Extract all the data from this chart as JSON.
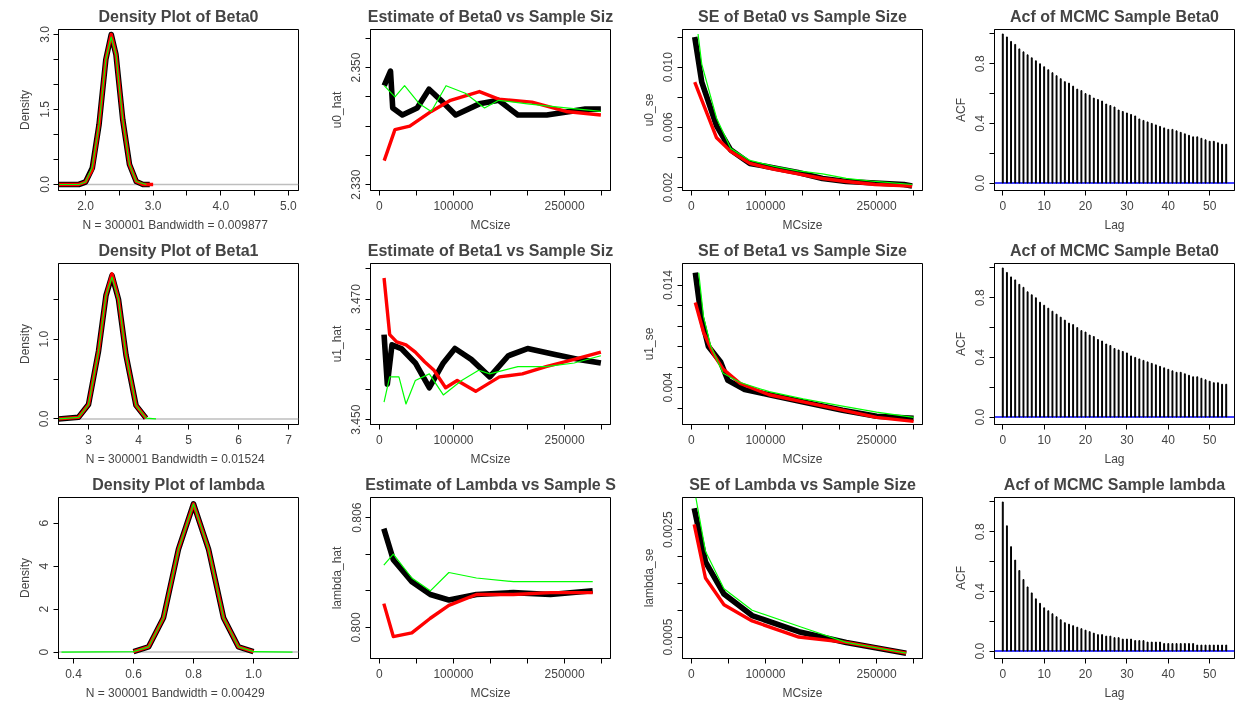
{
  "chart_data": [
    {
      "type": "line",
      "title": "Density Plot of Beta0",
      "xlabel": "N = 300001   Bandwidth = 0.009877",
      "ylabel": "Density",
      "xlim": [
        1.6,
        5.15
      ],
      "ylim": [
        -0.12,
        3.1
      ],
      "xticks": [
        {
          "value": 2.0,
          "label": "2.0"
        },
        {
          "value": 2.5,
          "label": null
        },
        {
          "value": 3.0,
          "label": "3.0"
        },
        {
          "value": 3.5,
          "label": null
        },
        {
          "value": 4.0,
          "label": "4.0"
        },
        {
          "value": 4.5,
          "label": null
        },
        {
          "value": 5.0,
          "label": "5.0"
        }
      ],
      "yticks": [
        {
          "value": 0,
          "label": "0.0"
        },
        {
          "value": 0.5,
          "label": null
        },
        {
          "value": 1.0,
          "label": null
        },
        {
          "value": 1.5,
          "label": "1.5"
        },
        {
          "value": 2.0,
          "label": null
        },
        {
          "value": 2.5,
          "label": null
        },
        {
          "value": 3.0,
          "label": "3.0"
        }
      ],
      "ref_lines": [
        {
          "axis": "y",
          "value": 0,
          "color": "#bebebe"
        }
      ],
      "series": [
        {
          "color": "#000000",
          "x": [
            1.6,
            1.9,
            2.0,
            2.1,
            2.2,
            2.3,
            2.38,
            2.45,
            2.55,
            2.65,
            2.75,
            2.85,
            2.95
          ],
          "values": [
            0,
            0,
            0.05,
            0.33,
            1.2,
            2.5,
            3.0,
            2.6,
            1.3,
            0.4,
            0.06,
            0,
            0
          ]
        },
        {
          "color": "#ff0000",
          "x": [
            1.6,
            1.9,
            2.0,
            2.1,
            2.2,
            2.3,
            2.38,
            2.45,
            2.55,
            2.65,
            2.75,
            2.85,
            3.0
          ],
          "values": [
            0,
            0,
            0.05,
            0.3,
            1.2,
            2.5,
            3.0,
            2.6,
            1.3,
            0.4,
            0.06,
            0,
            0
          ]
        },
        {
          "color": "#00ff00",
          "x": [
            1.6,
            1.9,
            2.0,
            2.1,
            2.2,
            2.3,
            2.38,
            2.45,
            2.55,
            2.65,
            2.75,
            2.9
          ],
          "values": [
            0,
            0,
            0.05,
            0.35,
            1.2,
            2.5,
            2.95,
            2.6,
            1.3,
            0.4,
            0.06,
            0
          ]
        }
      ]
    },
    {
      "type": "line",
      "title": "Estimate of Beta0 vs Sample Siz",
      "xlabel": "MCsize",
      "ylabel": "u0_hat",
      "xlim": [
        -12000,
        312000
      ],
      "ylim": [
        2.329,
        2.3565
      ],
      "xticks": [
        0,
        {
          "value": 50000,
          "label": null
        },
        100000,
        {
          "value": 150000,
          "label": null
        },
        {
          "value": 200000,
          "label": null
        },
        250000,
        {
          "value": 300000,
          "label": null
        }
      ],
      "yticks": [
        {
          "value": 2.33,
          "label": "2.330"
        },
        {
          "value": 2.335,
          "label": null
        },
        {
          "value": 2.34,
          "label": null
        },
        {
          "value": 2.345,
          "label": null
        },
        {
          "value": 2.35,
          "label": "2.350"
        },
        {
          "value": 2.355,
          "label": null
        }
      ],
      "series": [
        {
          "color": "#000000",
          "x": [
            6500,
            15000,
            18000,
            31000,
            51000,
            67000,
            83000,
            103000,
            135000,
            161000,
            187000,
            226000,
            278000,
            299000
          ],
          "values": [
            2.3469,
            2.3494,
            2.3431,
            2.3419,
            2.3431,
            2.3463,
            2.3444,
            2.3419,
            2.3438,
            2.3444,
            2.3419,
            2.3419,
            2.3429,
            2.3429
          ]
        },
        {
          "color": "#ff0000",
          "x": [
            6500,
            21000,
            41000,
            70000,
            96000,
            135000,
            161000,
            206000,
            252000,
            299000
          ],
          "values": [
            2.3341,
            2.3394,
            2.34,
            2.3425,
            2.3444,
            2.3459,
            2.3446,
            2.3441,
            2.3425,
            2.3419
          ]
        },
        {
          "color": "#00ff00",
          "x": [
            6500,
            21000,
            34000,
            54000,
            70000,
            90000,
            116000,
            142000,
            161000,
            200000,
            252000,
            299000
          ],
          "values": [
            2.3469,
            2.345,
            2.3469,
            2.3438,
            2.3425,
            2.3469,
            2.3456,
            2.3431,
            2.3444,
            2.3438,
            2.3431,
            2.3425
          ]
        }
      ]
    },
    {
      "type": "line",
      "title": "SE of Beta0 vs Sample Size",
      "xlabel": "MCsize",
      "ylabel": "u0_se",
      "xlim": [
        -12000,
        312000
      ],
      "ylim": [
        0.0018,
        0.0125
      ],
      "xticks": [
        0,
        {
          "value": 50000,
          "label": null
        },
        100000,
        {
          "value": 150000,
          "label": null
        },
        {
          "value": 200000,
          "label": null
        },
        250000,
        {
          "value": 300000,
          "label": null
        }
      ],
      "yticks": [
        {
          "value": 0.002,
          "label": "0.002"
        },
        {
          "value": 0.004,
          "label": null
        },
        {
          "value": 0.006,
          "label": "0.006"
        },
        {
          "value": 0.008,
          "label": null
        },
        {
          "value": 0.01,
          "label": "0.010"
        },
        {
          "value": 0.012,
          "label": null
        }
      ],
      "series": [
        {
          "color": "#000000",
          "x": [
            4500,
            14000,
            34000,
            53000,
            79000,
            112000,
            144000,
            177000,
            209000,
            248000,
            287000,
            298000
          ],
          "values": [
            0.012,
            0.009,
            0.0061,
            0.0045,
            0.0036,
            0.0033,
            0.003,
            0.0026,
            0.0024,
            0.0023,
            0.0022,
            0.0021
          ]
        },
        {
          "color": "#ff0000",
          "x": [
            4500,
            14000,
            34000,
            53000,
            79000,
            112000,
            144000,
            177000,
            209000,
            248000,
            298000
          ],
          "values": [
            0.009,
            0.0078,
            0.0053,
            0.0044,
            0.0036,
            0.0032,
            0.0029,
            0.0026,
            0.0024,
            0.0022,
            0.0021
          ]
        },
        {
          "color": "#00ff00",
          "x": [
            9000,
            14000,
            34000,
            53000,
            79000,
            112000,
            144000,
            177000,
            209000,
            248000,
            298000
          ],
          "values": [
            0.0122,
            0.0102,
            0.0066,
            0.0046,
            0.0038,
            0.0034,
            0.0031,
            0.0029,
            0.0026,
            0.0024,
            0.0022
          ]
        }
      ]
    },
    {
      "type": "bar",
      "title": "Acf of MCMC Sample Beta0",
      "xlabel": "Lag",
      "ylabel": "ACF",
      "xlim": [
        -2,
        56
      ],
      "ylim": [
        -0.05,
        1.03
      ],
      "xticks": [
        0,
        10,
        20,
        30,
        40,
        50
      ],
      "yticks": [
        {
          "value": 0,
          "label": "0.0"
        },
        {
          "value": 0.2,
          "label": null
        },
        {
          "value": 0.4,
          "label": "0.4"
        },
        {
          "value": 0.6,
          "label": null
        },
        {
          "value": 0.8,
          "label": "0.8"
        },
        {
          "value": 1.0,
          "label": null
        }
      ],
      "ref_lines": [
        {
          "axis": "y",
          "value": 0,
          "color": "#0000ff"
        }
      ],
      "x": [
        0,
        1,
        2,
        3,
        4,
        5,
        6,
        7,
        8,
        9,
        10,
        11,
        12,
        13,
        14,
        15,
        16,
        17,
        18,
        19,
        20,
        21,
        22,
        23,
        24,
        25,
        26,
        27,
        28,
        29,
        30,
        31,
        32,
        33,
        34,
        35,
        36,
        37,
        38,
        39,
        40,
        41,
        42,
        43,
        44,
        45,
        46,
        47,
        48,
        49,
        50,
        51,
        52,
        53,
        54
      ],
      "series": [
        {
          "color": "#000000",
          "values": [
            1.0,
            0.98,
            0.95,
            0.93,
            0.9,
            0.88,
            0.86,
            0.84,
            0.82,
            0.8,
            0.78,
            0.76,
            0.74,
            0.72,
            0.7,
            0.68,
            0.67,
            0.65,
            0.63,
            0.62,
            0.6,
            0.59,
            0.57,
            0.56,
            0.55,
            0.53,
            0.52,
            0.51,
            0.49,
            0.48,
            0.47,
            0.46,
            0.45,
            0.43,
            0.42,
            0.41,
            0.4,
            0.39,
            0.38,
            0.37,
            0.36,
            0.36,
            0.35,
            0.34,
            0.33,
            0.32,
            0.31,
            0.31,
            0.3,
            0.29,
            0.28,
            0.28,
            0.27,
            0.26,
            0.26
          ]
        }
      ]
    },
    {
      "type": "line",
      "title": "Density Plot of Beta1",
      "xlabel": "N = 300001   Bandwidth = 0.01524",
      "ylabel": "Density",
      "xlim": [
        2.4,
        7.2
      ],
      "ylim": [
        -0.07,
        1.95
      ],
      "xticks": [
        3,
        4,
        5,
        6,
        7
      ],
      "yticks": [
        {
          "value": 0,
          "label": "0.0"
        },
        {
          "value": 0.5,
          "label": null
        },
        {
          "value": 1.0,
          "label": "1.0"
        },
        {
          "value": 1.5,
          "label": null
        }
      ],
      "ref_lines": [
        {
          "axis": "y",
          "value": 0,
          "color": "#bebebe"
        }
      ],
      "series": [
        {
          "color": "#000000",
          "x": [
            2.4,
            2.8,
            3.0,
            3.2,
            3.35,
            3.47,
            3.6,
            3.75,
            3.95,
            4.15
          ],
          "values": [
            0,
            0.02,
            0.18,
            0.85,
            1.55,
            1.8,
            1.5,
            0.8,
            0.17,
            0.01
          ]
        },
        {
          "color": "#ff0000",
          "x": [
            2.4,
            2.8,
            3.0,
            3.2,
            3.35,
            3.47,
            3.6,
            3.75,
            3.95,
            4.15
          ],
          "values": [
            0,
            0.02,
            0.18,
            0.85,
            1.55,
            1.82,
            1.5,
            0.8,
            0.17,
            0.01
          ]
        },
        {
          "color": "#00ff00",
          "x": [
            2.4,
            2.8,
            3.0,
            3.2,
            3.35,
            3.47,
            3.6,
            3.75,
            3.95,
            4.15,
            4.35
          ],
          "values": [
            0,
            0.02,
            0.18,
            0.85,
            1.55,
            1.78,
            1.5,
            0.8,
            0.17,
            0.01,
            0
          ]
        }
      ]
    },
    {
      "type": "line",
      "title": "Estimate of Beta1 vs Sample Siz",
      "xlabel": "MCsize",
      "ylabel": "u1_hat",
      "xlim": [
        -12000,
        312000
      ],
      "ylim": [
        3.4492,
        3.4759
      ],
      "xticks": [
        0,
        {
          "value": 50000,
          "label": null
        },
        100000,
        {
          "value": 150000,
          "label": null
        },
        {
          "value": 200000,
          "label": null
        },
        250000,
        {
          "value": 300000,
          "label": null
        }
      ],
      "yticks": [
        {
          "value": 3.45,
          "label": "3.450"
        },
        {
          "value": 3.455,
          "label": null
        },
        {
          "value": 3.46,
          "label": null
        },
        {
          "value": 3.465,
          "label": null
        },
        {
          "value": 3.47,
          "label": "3.470"
        },
        {
          "value": 3.475,
          "label": null
        }
      ],
      "series": [
        {
          "color": "#000000",
          "x": [
            6300,
            10700,
            17000,
            29600,
            48500,
            67400,
            86300,
            102000,
            124000,
            149000,
            174000,
            200000,
            237000,
            269000,
            299000
          ],
          "values": [
            3.4641,
            3.4559,
            3.4624,
            3.4618,
            3.4594,
            3.4553,
            3.4594,
            3.4618,
            3.46,
            3.4571,
            3.4606,
            3.4618,
            3.4608,
            3.46,
            3.4594
          ]
        },
        {
          "color": "#ff0000",
          "x": [
            6300,
            13900,
            23300,
            35900,
            48500,
            61000,
            73700,
            89400,
            105000,
            130000,
            162000,
            193000,
            225000,
            263000,
            299000
          ],
          "values": [
            3.4735,
            3.4641,
            3.4629,
            3.4624,
            3.4612,
            3.4596,
            3.4582,
            3.4553,
            3.4565,
            3.4547,
            3.4571,
            3.4576,
            3.4588,
            3.46,
            3.4612
          ]
        },
        {
          "color": "#00ff00",
          "x": [
            6300,
            13900,
            26400,
            35900,
            48500,
            67400,
            86300,
            111000,
            134000,
            149000,
            187000,
            225000,
            263000,
            299000
          ],
          "values": [
            3.4529,
            3.4571,
            3.4571,
            3.4526,
            3.4565,
            3.4576,
            3.4541,
            3.4565,
            3.4582,
            3.4576,
            3.4588,
            3.4588,
            3.4594,
            3.4606
          ]
        }
      ]
    },
    {
      "type": "line",
      "title": "SE of Beta1 vs Sample Size",
      "xlabel": "MCsize",
      "ylabel": "u1_se",
      "xlim": [
        -12000,
        312000
      ],
      "ylim": [
        0.0004,
        0.0161
      ],
      "xticks": [
        0,
        {
          "value": 50000,
          "label": null
        },
        100000,
        {
          "value": 150000,
          "label": null
        },
        {
          "value": 200000,
          "label": null
        },
        250000,
        {
          "value": 300000,
          "label": null
        }
      ],
      "yticks": [
        {
          "value": 0.002,
          "label": null
        },
        {
          "value": 0.004,
          "label": "0.004"
        },
        {
          "value": 0.006,
          "label": null
        },
        {
          "value": 0.008,
          "label": null
        },
        {
          "value": 0.01,
          "label": null
        },
        {
          "value": 0.012,
          "label": null
        },
        {
          "value": 0.014,
          "label": "0.014"
        }
      ],
      "series": [
        {
          "color": "#000000",
          "x": [
            5300,
            13200,
            23000,
            39500,
            49300,
            72000,
            105000,
            151000,
            204000,
            250000,
            300000
          ],
          "values": [
            0.0152,
            0.0109,
            0.008,
            0.0065,
            0.0047,
            0.0038,
            0.0033,
            0.0026,
            0.0018,
            0.0012,
            0.001
          ]
        },
        {
          "color": "#ff0000",
          "x": [
            5300,
            16400,
            29600,
            42800,
            66000,
            105000,
            151000,
            204000,
            250000,
            300000
          ],
          "values": [
            0.0123,
            0.0094,
            0.0073,
            0.0058,
            0.0044,
            0.0033,
            0.0026,
            0.0018,
            0.0011,
            0.0007
          ]
        },
        {
          "color": "#00ff00",
          "x": [
            9900,
            16400,
            26300,
            42800,
            66000,
            105000,
            151000,
            204000,
            250000,
            300000
          ],
          "values": [
            0.0152,
            0.0109,
            0.008,
            0.0054,
            0.0045,
            0.0036,
            0.0029,
            0.0022,
            0.0016,
            0.0011
          ]
        }
      ]
    },
    {
      "type": "bar",
      "title": "Acf of MCMC Sample Beta0",
      "xlabel": "Lag",
      "ylabel": "ACF",
      "xlim": [
        -2,
        56
      ],
      "ylim": [
        -0.05,
        1.03
      ],
      "xticks": [
        0,
        10,
        20,
        30,
        40,
        50
      ],
      "yticks": [
        {
          "value": 0,
          "label": "0.0"
        },
        {
          "value": 0.2,
          "label": null
        },
        {
          "value": 0.4,
          "label": "0.4"
        },
        {
          "value": 0.6,
          "label": null
        },
        {
          "value": 0.8,
          "label": "0.8"
        },
        {
          "value": 1.0,
          "label": null
        }
      ],
      "ref_lines": [
        {
          "axis": "y",
          "value": 0,
          "color": "#0000ff"
        }
      ],
      "x": [
        0,
        1,
        2,
        3,
        4,
        5,
        6,
        7,
        8,
        9,
        10,
        11,
        12,
        13,
        14,
        15,
        16,
        17,
        18,
        19,
        20,
        21,
        22,
        23,
        24,
        25,
        26,
        27,
        28,
        29,
        30,
        31,
        32,
        33,
        34,
        35,
        36,
        37,
        38,
        39,
        40,
        41,
        42,
        43,
        44,
        45,
        46,
        47,
        48,
        49,
        50,
        51,
        52,
        53,
        54
      ],
      "series": [
        {
          "color": "#000000",
          "values": [
            1.0,
            0.97,
            0.94,
            0.92,
            0.89,
            0.87,
            0.84,
            0.82,
            0.8,
            0.77,
            0.75,
            0.73,
            0.71,
            0.69,
            0.67,
            0.65,
            0.63,
            0.62,
            0.6,
            0.58,
            0.57,
            0.55,
            0.54,
            0.52,
            0.51,
            0.49,
            0.48,
            0.46,
            0.45,
            0.44,
            0.43,
            0.41,
            0.4,
            0.39,
            0.38,
            0.37,
            0.36,
            0.35,
            0.34,
            0.33,
            0.32,
            0.31,
            0.3,
            0.3,
            0.29,
            0.28,
            0.27,
            0.27,
            0.26,
            0.25,
            0.24,
            0.23,
            0.23,
            0.22,
            0.22
          ]
        }
      ]
    },
    {
      "type": "line",
      "title": "Density Plot of lambda",
      "xlabel": "N = 300001   Bandwidth = 0.00429",
      "ylabel": "Density",
      "xlim": [
        0.35,
        1.15
      ],
      "ylim": [
        -0.3,
        7.2
      ],
      "xticks": [
        0.4,
        0.6,
        0.8,
        {
          "value": 1.0,
          "label": "1.0"
        }
      ],
      "yticks": [
        0,
        2,
        4,
        6
      ],
      "ref_lines": [
        {
          "axis": "y",
          "value": 0,
          "color": "#bebebe"
        }
      ],
      "series": [
        {
          "color": "#000000",
          "x": [
            0.6,
            0.65,
            0.7,
            0.75,
            0.8,
            0.85,
            0.9,
            0.95,
            1.0
          ],
          "values": [
            0.02,
            0.24,
            1.6,
            4.8,
            6.9,
            4.8,
            1.6,
            0.24,
            0.02
          ]
        },
        {
          "color": "#ff0000",
          "x": [
            0.6,
            0.65,
            0.7,
            0.75,
            0.8,
            0.85,
            0.9,
            0.95,
            1.0
          ],
          "values": [
            0.02,
            0.24,
            1.6,
            4.8,
            6.9,
            4.8,
            1.6,
            0.24,
            0.02
          ]
        },
        {
          "color": "#00ff00",
          "x": [
            0.36,
            0.6,
            0.65,
            0.7,
            0.75,
            0.8,
            0.85,
            0.9,
            0.95,
            1.0,
            1.13
          ],
          "values": [
            0,
            0.02,
            0.24,
            1.6,
            4.8,
            6.9,
            4.8,
            1.6,
            0.24,
            0.02,
            0
          ]
        }
      ]
    },
    {
      "type": "line",
      "title": "Estimate of Lambda vs Sample S",
      "xlabel": "MCsize",
      "ylabel": "lambda_hat",
      "xlim": [
        -12000,
        312000
      ],
      "ylim": [
        0.7983,
        0.8071
      ],
      "xticks": [
        0,
        {
          "value": 50000,
          "label": null
        },
        100000,
        {
          "value": 150000,
          "label": null
        },
        {
          "value": 200000,
          "label": null
        },
        250000,
        {
          "value": 300000,
          "label": null
        }
      ],
      "yticks": [
        {
          "value": 0.8,
          "label": "0.800"
        },
        {
          "value": 0.802,
          "label": null
        },
        {
          "value": 0.804,
          "label": null
        },
        {
          "value": 0.806,
          "label": "0.806"
        }
      ],
      "series": [
        {
          "color": "#000000",
          "x": [
            6000,
            18800,
            43800,
            68800,
            93800,
            131000,
            181000,
            231000,
            288000
          ],
          "values": [
            0.8054,
            0.8037,
            0.8025,
            0.8018,
            0.8015,
            0.8018,
            0.8019,
            0.8018,
            0.802
          ]
        },
        {
          "color": "#ff0000",
          "x": [
            6000,
            18800,
            43800,
            68800,
            93800,
            131000,
            181000,
            231000,
            288000
          ],
          "values": [
            0.8013,
            0.7995,
            0.7997,
            0.8005,
            0.8012,
            0.8018,
            0.8018,
            0.8019,
            0.8019
          ]
        },
        {
          "color": "#00ff00",
          "x": [
            6000,
            18800,
            43800,
            68800,
            93800,
            131000,
            181000,
            231000,
            288000
          ],
          "values": [
            0.8034,
            0.804,
            0.8027,
            0.802,
            0.803,
            0.8027,
            0.8025,
            0.8025,
            0.8025
          ]
        }
      ]
    },
    {
      "type": "line",
      "title": "SE of Lambda vs Sample Size",
      "xlabel": "MCsize",
      "ylabel": "lambda_se",
      "xlim": [
        -12000,
        312000
      ],
      "ylim": [
        0.0001,
        0.0031
      ],
      "xticks": [
        0,
        {
          "value": 50000,
          "label": null
        },
        100000,
        {
          "value": 150000,
          "label": null
        },
        {
          "value": 200000,
          "label": null
        },
        250000,
        {
          "value": 300000,
          "label": null
        }
      ],
      "yticks": [
        {
          "value": 0.0005,
          "label": "0.0005"
        },
        {
          "value": 0.001,
          "label": null
        },
        {
          "value": 0.0015,
          "label": null
        },
        {
          "value": 0.002,
          "label": null
        },
        {
          "value": 0.0025,
          "label": "0.0025"
        }
      ],
      "series": [
        {
          "color": "#000000",
          "x": [
            3800,
            19000,
            44000,
            82000,
            145000,
            209000,
            290000
          ],
          "values": [
            0.0029,
            0.0019,
            0.0013,
            0.0009,
            0.0006,
            0.0004,
            0.0002
          ]
        },
        {
          "color": "#ff0000",
          "x": [
            3800,
            19000,
            44000,
            82000,
            145000,
            209000,
            290000
          ],
          "values": [
            0.0026,
            0.0016,
            0.0011,
            0.0008,
            0.0005,
            0.0004,
            0.0002
          ]
        },
        {
          "color": "#00ff00",
          "x": [
            6000,
            19000,
            44000,
            82000,
            145000,
            209000,
            290000
          ],
          "values": [
            0.0031,
            0.0021,
            0.0014,
            0.001,
            0.0007,
            0.0004,
            0.0002
          ]
        }
      ]
    },
    {
      "type": "bar",
      "title": "Acf of MCMC Sample lambda",
      "xlabel": "Lag",
      "ylabel": "ACF",
      "xlim": [
        -2,
        56
      ],
      "ylim": [
        -0.05,
        1.03
      ],
      "xticks": [
        0,
        10,
        20,
        30,
        40,
        50
      ],
      "yticks": [
        {
          "value": 0,
          "label": "0.0"
        },
        {
          "value": 0.2,
          "label": null
        },
        {
          "value": 0.4,
          "label": "0.4"
        },
        {
          "value": 0.6,
          "label": null
        },
        {
          "value": 0.8,
          "label": "0.8"
        },
        {
          "value": 1.0,
          "label": null
        }
      ],
      "ref_lines": [
        {
          "axis": "y",
          "value": 0,
          "color": "#0000ff"
        }
      ],
      "x": [
        0,
        1,
        2,
        3,
        4,
        5,
        6,
        7,
        8,
        9,
        10,
        11,
        12,
        13,
        14,
        15,
        16,
        17,
        18,
        19,
        20,
        21,
        22,
        23,
        24,
        25,
        26,
        27,
        28,
        29,
        30,
        31,
        32,
        33,
        34,
        35,
        36,
        37,
        38,
        39,
        40,
        41,
        42,
        43,
        44,
        45,
        46,
        47,
        48,
        49,
        50,
        51,
        52,
        53,
        54
      ],
      "series": [
        {
          "color": "#000000",
          "values": [
            1.0,
            0.84,
            0.7,
            0.61,
            0.54,
            0.48,
            0.43,
            0.39,
            0.35,
            0.32,
            0.29,
            0.27,
            0.25,
            0.23,
            0.21,
            0.19,
            0.18,
            0.17,
            0.16,
            0.15,
            0.14,
            0.13,
            0.12,
            0.11,
            0.11,
            0.1,
            0.1,
            0.09,
            0.09,
            0.08,
            0.08,
            0.08,
            0.07,
            0.07,
            0.07,
            0.06,
            0.06,
            0.06,
            0.06,
            0.05,
            0.05,
            0.05,
            0.05,
            0.05,
            0.05,
            0.05,
            0.05,
            0.04,
            0.04,
            0.04,
            0.04,
            0.04,
            0.04,
            0.04,
            0.04
          ]
        }
      ]
    }
  ]
}
